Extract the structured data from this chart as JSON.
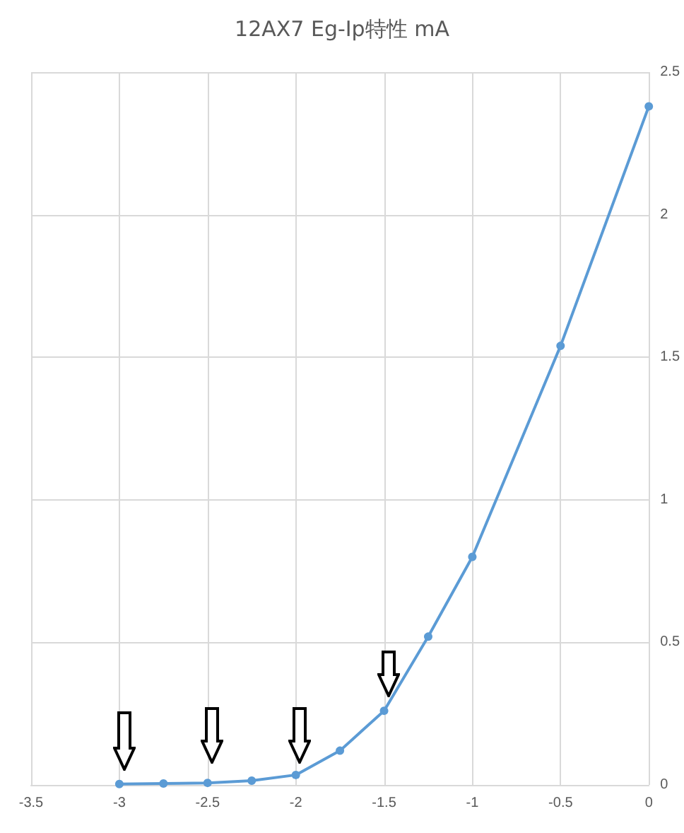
{
  "chart_data": {
    "type": "line",
    "title": "12AX7 Eg-Ip特性 mA",
    "x": [
      -3,
      -2.75,
      -2.5,
      -2.25,
      -2,
      -1.75,
      -1.5,
      -1.25,
      -1,
      -0.5,
      0
    ],
    "series": [
      {
        "color": "#5b9bd5",
        "values": [
          0.003,
          0.005,
          0.007,
          0.015,
          0.035,
          0.12,
          0.26,
          0.52,
          0.8,
          1.54,
          2.38
        ]
      }
    ],
    "xlim": [
      -3.5,
      0
    ],
    "xticks": [
      -3.5,
      -3,
      -2.5,
      -2,
      -1.5,
      -1,
      -0.5,
      0
    ],
    "ylim": [
      0,
      2.5
    ],
    "yticks": [
      0,
      0.5,
      1,
      1.5,
      2,
      2.5
    ],
    "grid": true,
    "marker": "circle",
    "line_style": "solid"
  }
}
